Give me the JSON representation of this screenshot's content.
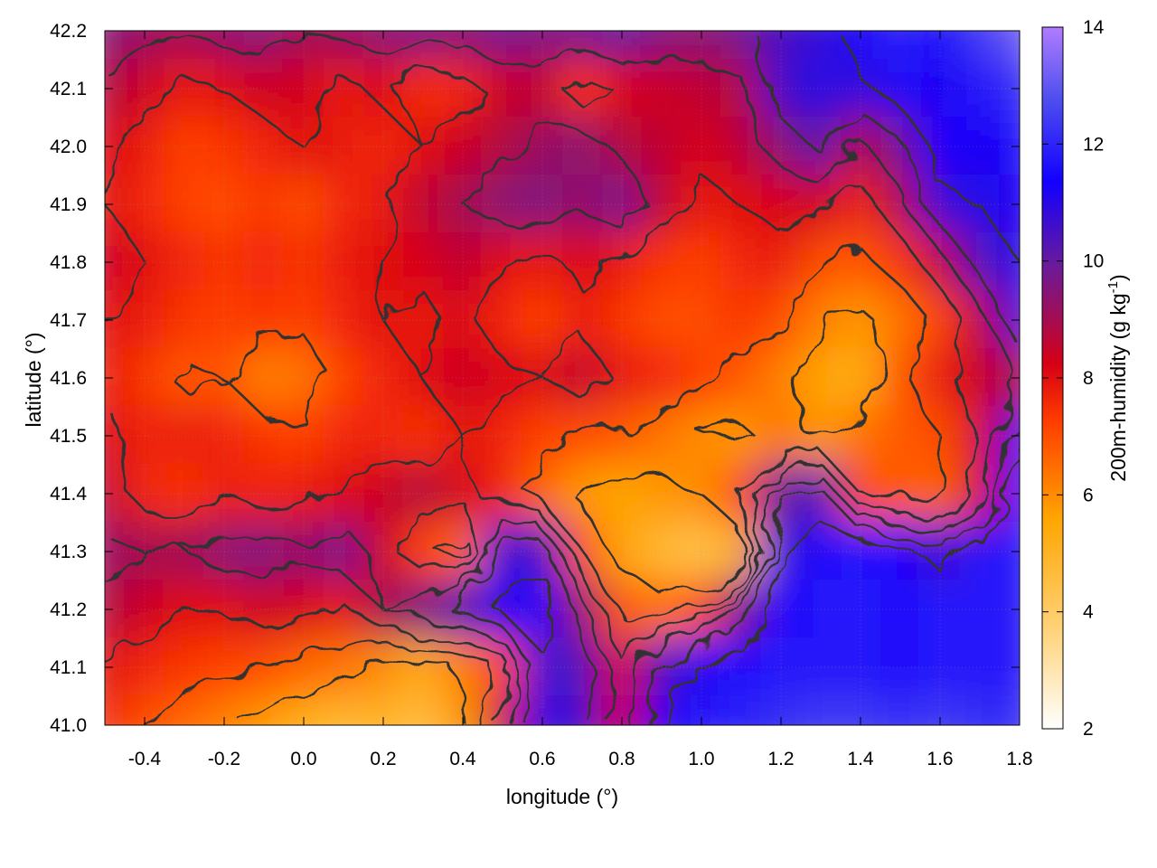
{
  "chart_data": {
    "type": "heatmap",
    "xlabel": "longitude (°)",
    "ylabel": "latitude (°)",
    "colorbar_label": {
      "base": "200m-humidity (g kg",
      "superscript": "-1",
      "close": ")"
    },
    "xlim": [
      -0.5,
      1.8
    ],
    "ylim": [
      41.0,
      42.2
    ],
    "colorbar_range": [
      2,
      14
    ],
    "x_ticks": [
      {
        "value": -0.4,
        "label": "-0.4"
      },
      {
        "value": -0.2,
        "label": "-0.2"
      },
      {
        "value": 0.0,
        "label": "0.0"
      },
      {
        "value": 0.2,
        "label": "0.2"
      },
      {
        "value": 0.4,
        "label": "0.4"
      },
      {
        "value": 0.6,
        "label": "0.6"
      },
      {
        "value": 0.8,
        "label": "0.8"
      },
      {
        "value": 1.0,
        "label": "1.0"
      },
      {
        "value": 1.2,
        "label": "1.2"
      },
      {
        "value": 1.4,
        "label": "1.4"
      },
      {
        "value": 1.6,
        "label": "1.6"
      },
      {
        "value": 1.8,
        "label": "1.8"
      }
    ],
    "y_ticks": [
      {
        "value": 41.0,
        "label": "41.0"
      },
      {
        "value": 41.1,
        "label": "41.1"
      },
      {
        "value": 41.2,
        "label": "41.2"
      },
      {
        "value": 41.3,
        "label": "41.3"
      },
      {
        "value": 41.4,
        "label": "41.4"
      },
      {
        "value": 41.5,
        "label": "41.5"
      },
      {
        "value": 41.6,
        "label": "41.6"
      },
      {
        "value": 41.7,
        "label": "41.7"
      },
      {
        "value": 41.8,
        "label": "41.8"
      },
      {
        "value": 41.9,
        "label": "41.9"
      },
      {
        "value": 42.0,
        "label": "42.0"
      },
      {
        "value": 42.1,
        "label": "42.1"
      },
      {
        "value": 42.2,
        "label": "42.2"
      }
    ],
    "colorbar_ticks": [
      {
        "value": 2,
        "label": "2"
      },
      {
        "value": 4,
        "label": "4"
      },
      {
        "value": 6,
        "label": "6"
      },
      {
        "value": 8,
        "label": "8"
      },
      {
        "value": 10,
        "label": "10"
      },
      {
        "value": 12,
        "label": "12"
      },
      {
        "value": 14,
        "label": "14"
      }
    ],
    "colormap": [
      "#ffffff",
      "#ffd37a",
      "#ffa500",
      "#ff3b00",
      "#d60015",
      "#6a1b9a",
      "#1200ff",
      "#5050ee",
      "#b07cff"
    ],
    "contour_color": "#333333",
    "grid": true,
    "humidity_field": {
      "x": [
        -0.5,
        -0.4,
        -0.3,
        -0.2,
        -0.1,
        0.0,
        0.1,
        0.2,
        0.3,
        0.4,
        0.5,
        0.6,
        0.7,
        0.8,
        0.9,
        1.0,
        1.1,
        1.2,
        1.3,
        1.4,
        1.5,
        1.6,
        1.7,
        1.8
      ],
      "y": [
        42.2,
        42.1,
        42.0,
        41.9,
        41.8,
        41.7,
        41.6,
        41.5,
        41.4,
        41.3,
        41.2,
        41.1,
        41.0
      ],
      "z": [
        [
          9.5,
          9.2,
          9.0,
          9.3,
          9.5,
          9.0,
          9.2,
          9.4,
          9.6,
          9.4,
          9.8,
          9.6,
          9.7,
          10.0,
          9.6,
          9.4,
          9.8,
          10.5,
          10.8,
          11.3,
          12.0,
          11.6,
          12.4,
          13.2
        ],
        [
          8.8,
          8.4,
          7.8,
          8.0,
          8.4,
          8.3,
          7.8,
          8.2,
          7.5,
          7.6,
          8.4,
          8.6,
          7.4,
          8.2,
          8.4,
          8.6,
          8.8,
          10.6,
          11.0,
          10.8,
          11.6,
          11.2,
          11.8,
          12.2
        ],
        [
          8.2,
          7.8,
          7.2,
          7.4,
          7.6,
          8.0,
          7.8,
          7.6,
          8.0,
          8.4,
          8.8,
          9.2,
          9.4,
          8.8,
          8.6,
          8.2,
          8.6,
          9.4,
          10.2,
          8.8,
          9.8,
          11.4,
          11.2,
          11.6
        ],
        [
          8.0,
          7.6,
          7.2,
          7.0,
          7.4,
          7.0,
          7.6,
          7.8,
          8.6,
          9.0,
          9.4,
          9.6,
          9.2,
          9.8,
          8.6,
          7.8,
          8.0,
          8.2,
          8.4,
          7.6,
          8.8,
          10.8,
          11.0,
          11.2
        ],
        [
          8.4,
          8.0,
          7.6,
          7.4,
          7.6,
          7.4,
          7.8,
          8.0,
          8.2,
          8.6,
          8.0,
          7.8,
          8.2,
          7.8,
          7.4,
          7.2,
          7.6,
          7.8,
          7.0,
          6.8,
          7.4,
          8.6,
          10.4,
          11.0
        ],
        [
          8.0,
          7.8,
          7.4,
          7.2,
          7.4,
          7.2,
          7.6,
          8.0,
          7.8,
          8.2,
          7.6,
          7.2,
          7.8,
          7.4,
          7.0,
          7.0,
          7.4,
          7.0,
          6.2,
          5.8,
          6.4,
          7.2,
          8.6,
          10.8
        ],
        [
          7.8,
          7.4,
          6.8,
          7.0,
          6.2,
          6.4,
          7.2,
          7.6,
          8.0,
          8.4,
          8.2,
          8.0,
          8.6,
          7.8,
          7.6,
          7.2,
          6.8,
          6.2,
          5.6,
          5.2,
          6.8,
          7.8,
          8.4,
          9.0
        ],
        [
          8.2,
          7.6,
          7.8,
          7.6,
          7.4,
          7.2,
          7.6,
          7.6,
          7.4,
          8.0,
          7.6,
          7.2,
          7.0,
          6.8,
          6.4,
          6.0,
          5.8,
          6.4,
          5.8,
          6.4,
          6.8,
          7.0,
          8.2,
          11.0
        ],
        [
          8.6,
          7.6,
          7.4,
          7.8,
          7.6,
          7.8,
          8.0,
          8.4,
          8.8,
          8.2,
          7.6,
          6.6,
          5.8,
          5.6,
          5.8,
          6.0,
          7.0,
          10.0,
          10.4,
          7.0,
          6.8,
          6.6,
          8.2,
          11.6
        ],
        [
          9.2,
          9.0,
          9.0,
          9.4,
          9.6,
          9.2,
          9.8,
          8.4,
          7.2,
          6.6,
          10.8,
          10.6,
          7.0,
          5.6,
          4.8,
          4.4,
          5.4,
          10.8,
          11.6,
          11.8,
          11.4,
          10.6,
          11.8,
          11.8
        ],
        [
          8.8,
          8.4,
          8.0,
          8.0,
          8.4,
          8.2,
          7.8,
          9.0,
          9.6,
          10.2,
          11.2,
          11.6,
          9.2,
          6.8,
          6.4,
          7.0,
          9.6,
          11.4,
          11.8,
          11.8,
          11.6,
          11.8,
          11.8,
          11.8
        ],
        [
          8.0,
          7.6,
          7.4,
          7.2,
          7.0,
          6.6,
          6.4,
          6.0,
          5.4,
          6.2,
          7.2,
          10.8,
          10.4,
          8.2,
          10.4,
          11.2,
          11.6,
          11.8,
          11.8,
          11.8,
          11.6,
          11.8,
          11.8,
          11.8
        ],
        [
          7.6,
          7.0,
          6.6,
          6.2,
          5.8,
          5.2,
          4.8,
          5.0,
          4.6,
          5.8,
          8.4,
          11.0,
          10.6,
          8.4,
          11.2,
          11.8,
          12.0,
          12.2,
          12.4,
          12.4,
          12.2,
          12.4,
          12.2,
          12.2
        ]
      ]
    }
  }
}
